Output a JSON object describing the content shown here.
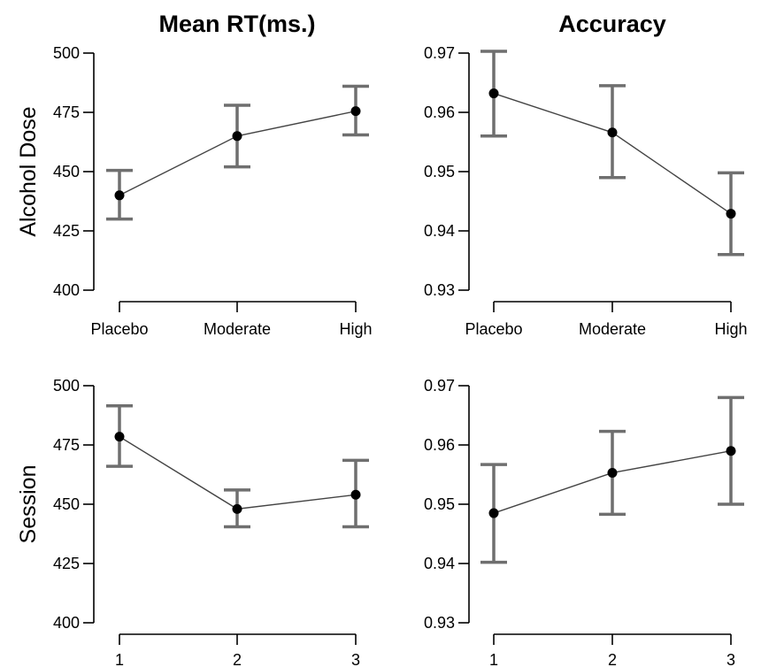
{
  "figure": {
    "col_titles": [
      "Mean RT(ms.)",
      "Accuracy"
    ],
    "row_labels": [
      "Alcohol Dose",
      "Session"
    ]
  },
  "chart_data": [
    {
      "type": "line",
      "row": "Alcohol Dose",
      "column": "Mean RT(ms.)",
      "categories": [
        "Placebo",
        "Moderate",
        "High"
      ],
      "values": [
        440,
        465,
        475.5
      ],
      "error_low": [
        430,
        452,
        465.5
      ],
      "error_high": [
        450.5,
        478,
        486
      ],
      "ylim": [
        400,
        500
      ],
      "yticks": [
        "400",
        "425",
        "450",
        "475",
        "500"
      ],
      "grid": false
    },
    {
      "type": "line",
      "row": "Alcohol Dose",
      "column": "Accuracy",
      "categories": [
        "Placebo",
        "Moderate",
        "High"
      ],
      "values": [
        0.9632,
        0.9566,
        0.9429
      ],
      "error_low": [
        0.956,
        0.949,
        0.936
      ],
      "error_high": [
        0.9703,
        0.9645,
        0.9498
      ],
      "ylim": [
        0.93,
        0.97
      ],
      "yticks": [
        "0.93",
        "0.94",
        "0.95",
        "0.96",
        "0.97"
      ],
      "grid": false
    },
    {
      "type": "line",
      "row": "Session",
      "column": "Mean RT(ms.)",
      "categories": [
        "1",
        "2",
        "3"
      ],
      "values": [
        478.5,
        448,
        454
      ],
      "error_low": [
        466,
        440.5,
        440.5
      ],
      "error_high": [
        491.5,
        456,
        468.5
      ],
      "ylim": [
        400,
        500
      ],
      "yticks": [
        "400",
        "425",
        "450",
        "475",
        "500"
      ],
      "grid": false
    },
    {
      "type": "line",
      "row": "Session",
      "column": "Accuracy",
      "categories": [
        "1",
        "2",
        "3"
      ],
      "values": [
        0.9485,
        0.9553,
        0.959
      ],
      "error_low": [
        0.9402,
        0.9483,
        0.95
      ],
      "error_high": [
        0.9567,
        0.9623,
        0.968
      ],
      "ylim": [
        0.93,
        0.97
      ],
      "yticks": [
        "0.93",
        "0.94",
        "0.95",
        "0.96",
        "0.97"
      ],
      "grid": false
    }
  ]
}
